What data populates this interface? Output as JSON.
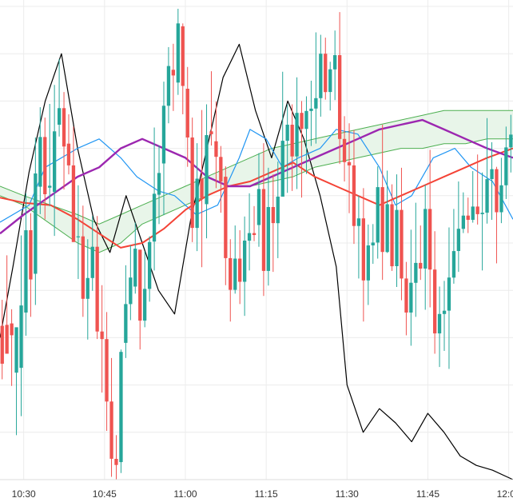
{
  "chart_data": {
    "type": "candlestick",
    "title": "",
    "xlabel": "",
    "ylabel": "",
    "grid": true,
    "x_ticks": [
      "10:30",
      "10:45",
      "11:00",
      "11:15",
      "11:30",
      "11:45",
      "12:00"
    ],
    "x_tick_minutes": [
      30,
      45,
      60,
      75,
      90,
      105,
      120
    ],
    "x_range_minutes": [
      25.6,
      120.8
    ],
    "y_range": [
      0,
      100
    ],
    "colors": {
      "up": "#26a69a",
      "down": "#ef5350",
      "tenkan": "#2196f3",
      "kijun": "#f44336",
      "chikou": "#000000",
      "base": "#9c27b0",
      "cloud_up_fill": "#e8f5e9",
      "cloud_down_fill": "#fde7e7",
      "cloud_edge": "#4caf50",
      "grid": "#ececec"
    },
    "candles": [
      [
        24.5,
        32.5,
        38,
        21.2,
        "d"
      ],
      [
        26.6,
        32.7,
        47.4,
        30.3,
        "d"
      ],
      [
        30.5,
        33.0,
        36.0,
        19.8,
        "d"
      ],
      [
        32.2,
        22.6,
        29.6,
        9.4,
        "u"
      ],
      [
        23.6,
        36.8,
        51.6,
        13.4,
        "u"
      ],
      [
        35.3,
        52.7,
        60.5,
        30.4,
        "u"
      ],
      [
        52.7,
        42.3,
        56.3,
        34.4,
        "d"
      ],
      [
        43.5,
        64.7,
        72.3,
        36.9,
        "u"
      ],
      [
        61.9,
        72.4,
        78.7,
        56.1,
        "u"
      ],
      [
        72.4,
        60.3,
        76.5,
        55.0,
        "d"
      ],
      [
        61.7,
        62.1,
        79.4,
        57.8,
        "u"
      ],
      [
        60.8,
        73.6,
        83.4,
        51.5,
        "u"
      ],
      [
        75.0,
        78.5,
        88.9,
        72.5,
        "u"
      ],
      [
        78.5,
        70.4,
        81.9,
        61.3,
        "d"
      ],
      [
        71.0,
        66.4,
        77.2,
        64.5,
        "d"
      ],
      [
        66.4,
        50.2,
        74.6,
        50.8,
        "d"
      ],
      [
        51.2,
        51.4,
        62.2,
        42.4,
        "u"
      ],
      [
        51.4,
        38.2,
        57.9,
        34.4,
        "d"
      ],
      [
        38.2,
        42.6,
        50.8,
        29.6,
        "u"
      ],
      [
        42.6,
        49.2,
        55.7,
        39.9,
        "u"
      ],
      [
        49.2,
        31.3,
        55.7,
        29.7,
        "d"
      ],
      [
        31.3,
        29.7,
        41.1,
        18.4,
        "d"
      ],
      [
        29.7,
        16.5,
        35.4,
        10.3,
        "d"
      ],
      [
        16.5,
        4.4,
        25.7,
        0.6,
        "d"
      ],
      [
        4.4,
        3.1,
        9.4,
        0.0,
        "d"
      ],
      [
        3.7,
        27.0,
        27.5,
        1.4,
        "u"
      ],
      [
        28.9,
        37.1,
        45.3,
        25.7,
        "u"
      ],
      [
        37.1,
        42.7,
        49.5,
        33.7,
        "u"
      ],
      [
        40.8,
        48.8,
        54.3,
        39.3,
        "u"
      ],
      [
        48.6,
        33.6,
        48.2,
        27.5,
        "d"
      ],
      [
        33.6,
        40.3,
        48.2,
        32.2,
        "u"
      ],
      [
        40.3,
        50.2,
        51.4,
        37.6,
        "u"
      ],
      [
        50.3,
        60.4,
        74.4,
        44.2,
        "u"
      ],
      [
        60.2,
        64.8,
        70.6,
        54.0,
        "u"
      ],
      [
        66.8,
        79.0,
        84.1,
        55.9,
        "u"
      ],
      [
        79.0,
        87.4,
        91.4,
        75.3,
        "u"
      ],
      [
        86.6,
        85.4,
        92.1,
        77.9,
        "d"
      ],
      [
        83.9,
        96.4,
        99.5,
        81.3,
        "u"
      ],
      [
        95.8,
        83.2,
        96.4,
        77.2,
        "d"
      ],
      [
        82.6,
        72.3,
        87.2,
        66.1,
        "d"
      ],
      [
        72.3,
        53.2,
        76.5,
        50.2,
        "d"
      ],
      [
        53.2,
        63.6,
        71.1,
        48.3,
        "u"
      ],
      [
        63.6,
        59.5,
        78.1,
        44.9,
        "d"
      ],
      [
        58.2,
        72.8,
        79.3,
        51.0,
        "u"
      ],
      [
        73.6,
        73.0,
        86.3,
        70.6,
        "d"
      ],
      [
        71.5,
        68.2,
        79.9,
        61.6,
        "d"
      ],
      [
        68.2,
        63.0,
        70.5,
        56.4,
        "d"
      ],
      [
        64.0,
        46.8,
        66.2,
        41.1,
        "d"
      ],
      [
        46.8,
        40.1,
        50.8,
        33.4,
        "d"
      ],
      [
        40.1,
        46.7,
        53.7,
        39.3,
        "u"
      ],
      [
        46.7,
        41.8,
        52.7,
        37.1,
        "d"
      ],
      [
        41.8,
        50.5,
        55.6,
        34.6,
        "u"
      ],
      [
        50.5,
        52.1,
        60.5,
        44.2,
        "u"
      ],
      [
        52.1,
        51.7,
        57.8,
        50.4,
        "d"
      ],
      [
        53.8,
        61.4,
        69.0,
        49.2,
        "u"
      ],
      [
        61.4,
        44.1,
        71.1,
        38.8,
        "d"
      ],
      [
        44.1,
        57.6,
        65.9,
        41.0,
        "u"
      ],
      [
        57.6,
        54.2,
        64.5,
        43.9,
        "d"
      ],
      [
        54.2,
        59.8,
        67.2,
        46.8,
        "u"
      ],
      [
        59.8,
        71.6,
        86.2,
        59.8,
        "u"
      ],
      [
        71.6,
        75.0,
        79.3,
        60.6,
        "u"
      ],
      [
        75.0,
        68.3,
        79.3,
        61.0,
        "d"
      ],
      [
        68.3,
        77.5,
        85.0,
        61.4,
        "u"
      ],
      [
        77.5,
        74.1,
        80.0,
        59.6,
        "d"
      ],
      [
        74.1,
        77.9,
        81.0,
        64.6,
        "u"
      ],
      [
        77.9,
        78.4,
        84.3,
        70.5,
        "u"
      ],
      [
        78.4,
        80.6,
        94.5,
        71.0,
        "u"
      ],
      [
        80.6,
        90.0,
        94.0,
        76.7,
        "u"
      ],
      [
        90.0,
        81.9,
        93.4,
        80.3,
        "d"
      ],
      [
        81.9,
        86.7,
        88.3,
        78.0,
        "u"
      ],
      [
        86.7,
        89.7,
        94.9,
        80.2,
        "u"
      ],
      [
        89.7,
        72.0,
        98.8,
        66.7,
        "d"
      ],
      [
        72.0,
        67.1,
        76.8,
        63.0,
        "d"
      ],
      [
        67.1,
        66.4,
        75.3,
        56.3,
        "d"
      ],
      [
        66.4,
        53.6,
        73.9,
        49.8,
        "d"
      ],
      [
        53.6,
        55.2,
        60.0,
        42.5,
        "u"
      ],
      [
        55.2,
        42.1,
        61.6,
        33.4,
        "d"
      ],
      [
        42.1,
        49.5,
        53.9,
        36.9,
        "u"
      ],
      [
        49.5,
        50.1,
        54.0,
        45.6,
        "u"
      ],
      [
        50.1,
        61.8,
        66.2,
        46.7,
        "u"
      ],
      [
        61.8,
        48.1,
        75.0,
        42.2,
        "d"
      ],
      [
        48.1,
        58.2,
        65.3,
        47.9,
        "u"
      ],
      [
        58.2,
        45.1,
        62.4,
        44.1,
        "d"
      ],
      [
        45.1,
        57.0,
        64.5,
        40.7,
        "u"
      ],
      [
        57.0,
        42.5,
        65.9,
        37.9,
        "d"
      ],
      [
        42.5,
        35.3,
        46.0,
        30.5,
        "d"
      ],
      [
        35.3,
        41.6,
        52.8,
        28.3,
        "u"
      ],
      [
        41.6,
        45.8,
        58.5,
        34.4,
        "u"
      ],
      [
        45.8,
        44.6,
        53.7,
        42.2,
        "d"
      ],
      [
        44.6,
        57.2,
        62.3,
        35.9,
        "u"
      ],
      [
        57.2,
        44.4,
        69.7,
        36.4,
        "d"
      ],
      [
        44.4,
        30.9,
        52.5,
        26.6,
        "d"
      ],
      [
        30.9,
        35.0,
        40.8,
        23.8,
        "u"
      ],
      [
        35.0,
        35.7,
        42.0,
        27.2,
        "u"
      ],
      [
        35.7,
        42.7,
        53.3,
        23.4,
        "u"
      ],
      [
        42.7,
        48.3,
        57.2,
        41.4,
        "u"
      ],
      [
        48.3,
        53.0,
        63.0,
        43.9,
        "u"
      ],
      [
        53.0,
        55.8,
        60.7,
        52.1,
        "u"
      ],
      [
        55.8,
        54.9,
        59.6,
        52.1,
        "d"
      ],
      [
        54.9,
        57.7,
        65.2,
        54.3,
        "u"
      ],
      [
        57.7,
        56.1,
        68.7,
        53.9,
        "d"
      ],
      [
        56.1,
        56.4,
        64.9,
        44.2,
        "u"
      ],
      [
        56.4,
        63.5,
        76.4,
        54.1,
        "u"
      ],
      [
        63.5,
        65.6,
        71.3,
        54.9,
        "u"
      ],
      [
        65.6,
        56.5,
        66.1,
        45.7,
        "d"
      ],
      [
        56.5,
        62.2,
        68.0,
        54.2,
        "u"
      ],
      [
        62.2,
        70.2,
        74.6,
        59.3,
        "u"
      ],
      [
        70.2,
        72.9,
        77.1,
        64.9,
        "u"
      ]
    ],
    "tenkan": [
      [
        25.6,
        54.4
      ],
      [
        31,
        58
      ],
      [
        34,
        66
      ],
      [
        40,
        70
      ],
      [
        44,
        72
      ],
      [
        48,
        68
      ],
      [
        51,
        64
      ],
      [
        55,
        61
      ],
      [
        58,
        60
      ],
      [
        62,
        56
      ],
      [
        66,
        58
      ],
      [
        70,
        68
      ],
      [
        72,
        74
      ],
      [
        75,
        72
      ],
      [
        78,
        66
      ],
      [
        81,
        68
      ],
      [
        85,
        70
      ],
      [
        88,
        74
      ],
      [
        92,
        73
      ],
      [
        96,
        66
      ],
      [
        99,
        58
      ],
      [
        102,
        60
      ],
      [
        106,
        68
      ],
      [
        110,
        70
      ],
      [
        113,
        66
      ],
      [
        117,
        63
      ],
      [
        120.8,
        55
      ]
    ],
    "kijun": [
      [
        25.6,
        59.6
      ],
      [
        30,
        58.5
      ],
      [
        35,
        58
      ],
      [
        40,
        55
      ],
      [
        44,
        52
      ],
      [
        48,
        49
      ],
      [
        52,
        50
      ],
      [
        56,
        53
      ],
      [
        60,
        57
      ],
      [
        64,
        60
      ],
      [
        68,
        62
      ],
      [
        72,
        63
      ],
      [
        76,
        65
      ],
      [
        80,
        67
      ],
      [
        84,
        64
      ],
      [
        88,
        62
      ],
      [
        92,
        60
      ],
      [
        96,
        58
      ],
      [
        100,
        60
      ],
      [
        104,
        62
      ],
      [
        108,
        64
      ],
      [
        112,
        66
      ],
      [
        116,
        68
      ],
      [
        120.8,
        70
      ]
    ],
    "chikou": [
      [
        25.6,
        30
      ],
      [
        28,
        45
      ],
      [
        31,
        65
      ],
      [
        34,
        80
      ],
      [
        37,
        90
      ],
      [
        40,
        70
      ],
      [
        43,
        55
      ],
      [
        46,
        48
      ],
      [
        49,
        60
      ],
      [
        52,
        50
      ],
      [
        55,
        40
      ],
      [
        58,
        35
      ],
      [
        61,
        55
      ],
      [
        64,
        70
      ],
      [
        67,
        85
      ],
      [
        70,
        92
      ],
      [
        73,
        78
      ],
      [
        76,
        68
      ],
      [
        79,
        80
      ],
      [
        82,
        72
      ],
      [
        85,
        60
      ],
      [
        88,
        45
      ],
      [
        90,
        20
      ],
      [
        93,
        10
      ],
      [
        96,
        15
      ],
      [
        99,
        12
      ],
      [
        102,
        8
      ],
      [
        105,
        14
      ],
      [
        108,
        10
      ],
      [
        111,
        5
      ],
      [
        114,
        3
      ],
      [
        117,
        2
      ],
      [
        120.8,
        0
      ]
    ],
    "base": [
      [
        25.6,
        52
      ],
      [
        30,
        56
      ],
      [
        35,
        60
      ],
      [
        40,
        64
      ],
      [
        44,
        66
      ],
      [
        48,
        70
      ],
      [
        52,
        72
      ],
      [
        56,
        70
      ],
      [
        60,
        68
      ],
      [
        64,
        64
      ],
      [
        68,
        62
      ],
      [
        72,
        62
      ],
      [
        76,
        64
      ],
      [
        80,
        66
      ],
      [
        84,
        68
      ],
      [
        88,
        70
      ],
      [
        92,
        72
      ],
      [
        96,
        74
      ],
      [
        100,
        75
      ],
      [
        104,
        76
      ],
      [
        108,
        74
      ],
      [
        112,
        72
      ],
      [
        116,
        70
      ],
      [
        120.8,
        68
      ]
    ],
    "cloud_a": [
      [
        25.6,
        62
      ],
      [
        30,
        60
      ],
      [
        35,
        58
      ],
      [
        40,
        56
      ],
      [
        44,
        54
      ],
      [
        48,
        56
      ],
      [
        52,
        58
      ],
      [
        56,
        60
      ],
      [
        60,
        62
      ],
      [
        64,
        64
      ],
      [
        68,
        66
      ],
      [
        72,
        68
      ],
      [
        76,
        70
      ],
      [
        80,
        71
      ],
      [
        84,
        72
      ],
      [
        88,
        73
      ],
      [
        92,
        74
      ],
      [
        96,
        75
      ],
      [
        100,
        76
      ],
      [
        104,
        77
      ],
      [
        108,
        78
      ],
      [
        112,
        78
      ],
      [
        116,
        78
      ],
      [
        120.8,
        78
      ]
    ],
    "cloud_b": [
      [
        25.6,
        60
      ],
      [
        30,
        58
      ],
      [
        35,
        54
      ],
      [
        40,
        50
      ],
      [
        44,
        48
      ],
      [
        48,
        50
      ],
      [
        52,
        54
      ],
      [
        56,
        56
      ],
      [
        60,
        58
      ],
      [
        64,
        60
      ],
      [
        68,
        62
      ],
      [
        72,
        62
      ],
      [
        76,
        63
      ],
      [
        80,
        64
      ],
      [
        84,
        66
      ],
      [
        88,
        67
      ],
      [
        92,
        68
      ],
      [
        96,
        69
      ],
      [
        100,
        70
      ],
      [
        104,
        70
      ],
      [
        108,
        71
      ],
      [
        112,
        71
      ],
      [
        116,
        72
      ],
      [
        120.8,
        72
      ]
    ]
  }
}
